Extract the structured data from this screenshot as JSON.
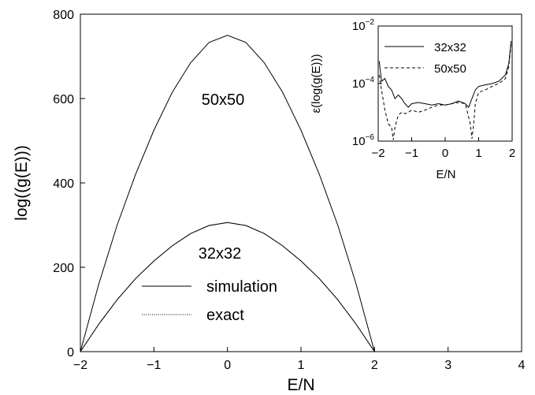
{
  "chart_data": [
    {
      "type": "line",
      "xlabel": "E/N",
      "ylabel": "log((g(E)))",
      "xlim": [
        -2,
        4
      ],
      "ylim": [
        0,
        800
      ],
      "xticks": [
        "−2",
        "−1",
        "0",
        "1",
        "2",
        "3",
        "4"
      ],
      "yticks": [
        "0",
        "200",
        "400",
        "600",
        "800"
      ],
      "grid": false,
      "legend": {
        "placement": "bottom-center",
        "entries": [
          "simulation",
          "exact"
        ]
      },
      "annotations": [
        "50x50",
        "32x32"
      ],
      "series": [
        {
          "name": "simulation",
          "style": "solid",
          "curves": [
            {
              "label": "50x50",
              "x": [
                -2,
                -1.75,
                -1.5,
                -1.25,
                -1,
                -0.75,
                -0.5,
                -0.25,
                0,
                0.25,
                0.5,
                0.75,
                1,
                1.25,
                1.5,
                1.75,
                2
              ],
              "y": [
                0,
                160,
                300,
                420,
                525,
                615,
                685,
                733,
                750,
                733,
                685,
                615,
                525,
                420,
                300,
                160,
                0
              ]
            },
            {
              "label": "32x32",
              "x": [
                -2,
                -1.75,
                -1.5,
                -1.25,
                -1,
                -0.75,
                -0.5,
                -0.25,
                0,
                0.25,
                0.5,
                0.75,
                1,
                1.25,
                1.5,
                1.75,
                2
              ],
              "y": [
                0,
                65,
                123,
                173,
                215,
                251,
                280,
                299,
                306,
                299,
                280,
                251,
                215,
                173,
                123,
                65,
                0
              ]
            }
          ]
        },
        {
          "name": "exact",
          "style": "dotted",
          "curves": [
            {
              "label": "32x32",
              "x": [
                -2,
                -1.75,
                -1.5,
                -1.25,
                -1,
                -0.75,
                -0.5,
                -0.25,
                0,
                0.25,
                0.5,
                0.75,
                1,
                1.25,
                1.5,
                1.75,
                2
              ],
              "y": [
                0,
                65,
                123,
                173,
                215,
                251,
                280,
                299,
                306,
                299,
                280,
                251,
                215,
                173,
                123,
                65,
                0
              ]
            }
          ]
        }
      ]
    },
    {
      "type": "line",
      "xlabel": "E/N",
      "ylabel": "ε(log(g(E)))",
      "yscale": "log",
      "xlim": [
        -2,
        2
      ],
      "ylim": [
        1e-06,
        0.01
      ],
      "xticks": [
        "−2",
        "−1",
        "0",
        "1",
        "2"
      ],
      "yticks": [
        {
          "base": "10",
          "exp": "−6"
        },
        {
          "base": "10",
          "exp": "−4"
        },
        {
          "base": "10",
          "exp": "−2"
        }
      ],
      "grid": false,
      "legend": {
        "placement": "top-right",
        "entries": [
          "32x32",
          "50x50"
        ]
      },
      "series": [
        {
          "name": "32x32",
          "style": "solid",
          "x": [
            -1.97,
            -1.9,
            -1.8,
            -1.7,
            -1.6,
            -1.5,
            -1.4,
            -1.3,
            -1.2,
            -1.1,
            -1.0,
            -0.8,
            -0.6,
            -0.4,
            -0.2,
            0,
            0.2,
            0.4,
            0.6,
            0.7,
            0.8,
            0.9,
            1.0,
            1.2,
            1.4,
            1.6,
            1.8,
            1.9,
            1.97
          ],
          "y": [
            0.0006,
            0.00012,
            0.00015,
            8e-05,
            6e-05,
            3e-05,
            4e-05,
            3e-05,
            2e-05,
            1.5e-05,
            2e-05,
            2.2e-05,
            2e-05,
            1.8e-05,
            2e-05,
            1.8e-05,
            2e-05,
            2.5e-05,
            2e-05,
            1.5e-05,
            3e-05,
            6e-05,
            8e-05,
            9e-05,
            0.0001,
            0.00012,
            0.0002,
            0.0005,
            0.003
          ]
        },
        {
          "name": "50x50",
          "style": "dashed",
          "x": [
            -1.97,
            -1.9,
            -1.8,
            -1.7,
            -1.6,
            -1.55,
            -1.5,
            -1.4,
            -1.3,
            -1.2,
            -1.1,
            -1.0,
            -0.8,
            -0.6,
            -0.4,
            -0.2,
            0,
            0.2,
            0.4,
            0.6,
            0.75,
            0.8,
            0.85,
            0.9,
            1.0,
            1.2,
            1.4,
            1.6,
            1.8,
            1.9,
            1.97
          ],
          "y": [
            0.0002,
            6e-05,
            1.2e-05,
            4e-06,
            3e-06,
            1.1e-06,
            3e-06,
            8e-06,
            1e-05,
            9e-06,
            1e-05,
            1.2e-05,
            1e-05,
            1.2e-05,
            1.5e-05,
            1.8e-05,
            1.8e-05,
            2e-05,
            2.2e-05,
            2e-05,
            4e-06,
            1.2e-06,
            4e-06,
            2e-05,
            5e-05,
            6e-05,
            8e-05,
            0.0001,
            0.00015,
            0.0004,
            0.0025
          ]
        }
      ]
    }
  ]
}
